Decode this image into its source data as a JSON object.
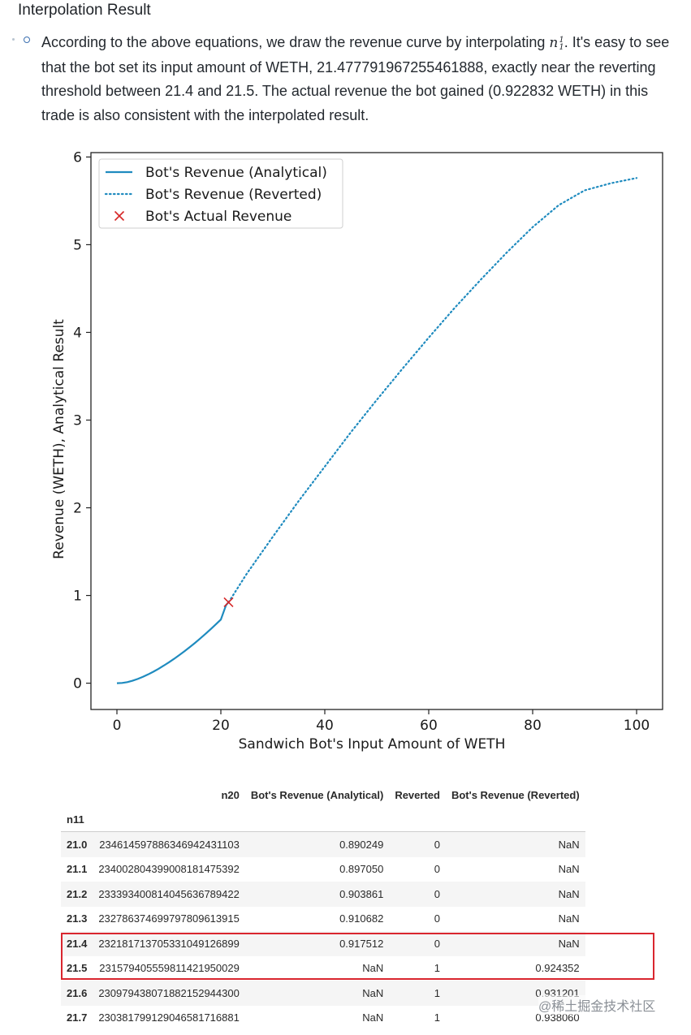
{
  "section": {
    "heading": "Interpolation Result",
    "para_before": "According to the above equations, we draw the revenue curve by interpolating ",
    "math_var": "n",
    "math_sub": "1",
    "math_sup": "1",
    "para_after": ". It's easy to see that the bot set its input amount of WETH, 21.477791967255461888, exactly near the reverting threshold between 21.4 and 21.5. The actual revenue the bot gained (0.922832 WETH) in this trade is also consistent with the interpolated result."
  },
  "chart_data": {
    "type": "line",
    "title": "",
    "xlabel": "Sandwich Bot's Input Amount of WETH",
    "ylabel": "Revenue (WETH), Analytical Result",
    "xlim": [
      -5,
      105
    ],
    "ylim": [
      -0.3,
      6.05
    ],
    "xticks": [
      0,
      20,
      40,
      60,
      80,
      100
    ],
    "yticks": [
      0,
      1,
      2,
      3,
      4,
      5,
      6
    ],
    "legend_position": "top-left",
    "colors": {
      "line": "#1f8bbf",
      "marker": "#d62728"
    },
    "series": [
      {
        "name": "Bot's Revenue (Analytical)",
        "style": "solid",
        "x": [
          0,
          1,
          2,
          3,
          4,
          5,
          6,
          7,
          8,
          9,
          10,
          11,
          12,
          13,
          14,
          15,
          16,
          17,
          18,
          19,
          20,
          21,
          21.4
        ],
        "y": [
          0.0,
          0.003,
          0.012,
          0.028,
          0.048,
          0.072,
          0.1,
          0.13,
          0.164,
          0.2,
          0.238,
          0.278,
          0.32,
          0.364,
          0.41,
          0.458,
          0.508,
          0.56,
          0.614,
          0.669,
          0.726,
          0.89,
          0.918
        ]
      },
      {
        "name": "Bot's Revenue (Reverted)",
        "style": "dotted",
        "x": [
          21.5,
          25,
          30,
          35,
          40,
          45,
          50,
          55,
          60,
          65,
          70,
          75,
          80,
          85,
          90,
          95,
          100
        ],
        "y": [
          0.924,
          1.25,
          1.67,
          2.08,
          2.47,
          2.86,
          3.23,
          3.59,
          3.94,
          4.28,
          4.6,
          4.91,
          5.2,
          5.45,
          5.62,
          5.7,
          5.76
        ]
      },
      {
        "name": "Bot's Actual Revenue",
        "style": "marker",
        "x": [
          21.478
        ],
        "y": [
          0.922832
        ]
      }
    ]
  },
  "table": {
    "index_name": "n11",
    "columns": [
      "n20",
      "Bot's Revenue (Analytical)",
      "Reverted",
      "Bot's Revenue (Reverted)"
    ],
    "rows": [
      {
        "idx": "21.0",
        "n20": "23461459788634694243110​3",
        "a": "0.890249",
        "r": "0",
        "rv": "NaN"
      },
      {
        "idx": "21.1",
        "n20": "23400280439900818147539​2",
        "a": "0.897050",
        "r": "0",
        "rv": "NaN"
      },
      {
        "idx": "21.2",
        "n20": "23339340081404563678942​2",
        "a": "0.903861",
        "r": "0",
        "rv": "NaN"
      },
      {
        "idx": "21.3",
        "n20": "23278637469979780961391​5",
        "a": "0.910682",
        "r": "0",
        "rv": "NaN"
      },
      {
        "idx": "21.4",
        "n20": "23218171370533104912689​9",
        "a": "0.917512",
        "r": "0",
        "rv": "NaN"
      },
      {
        "idx": "21.5",
        "n20": "23157940555981142195002​9",
        "a": "NaN",
        "r": "1",
        "rv": "0.924352"
      },
      {
        "idx": "21.6",
        "n20": "23097943807188215294430​0",
        "a": "NaN",
        "r": "1",
        "rv": "0.931201"
      },
      {
        "idx": "21.7",
        "n20": "23038179912904658171688​1",
        "a": "NaN",
        "r": "1",
        "rv": "0.938060"
      }
    ]
  },
  "watermark": "@稀土掘金技术社区"
}
